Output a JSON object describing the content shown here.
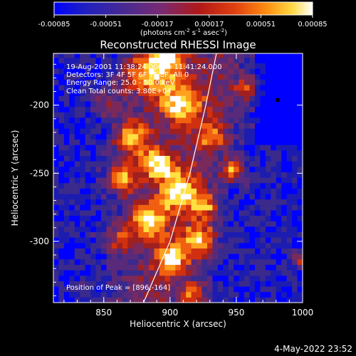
{
  "chart_data": {
    "type": "heatmap",
    "title": "Reconstructed RHESSI Image",
    "xlabel": "Heliocentric X (arcsec)",
    "ylabel": "Heliocentric Y (arcsec)",
    "xlim": [
      812,
      1000
    ],
    "ylim": [
      -345,
      -162
    ],
    "xticks": [
      850,
      900,
      950,
      1000
    ],
    "yticks": [
      -200,
      -250,
      -300
    ],
    "colorbar": {
      "min": -0.00085,
      "max": 0.00085,
      "ticks": [
        "-0.00085",
        "-0.00051",
        "-0.00017",
        "0.00017",
        "0.00051",
        "0.00085"
      ],
      "unit_main": "(photons cm",
      "unit_exp1": "-2",
      "unit_s": " s",
      "unit_exp2": "-1",
      "unit_asec": " asec",
      "unit_exp3": "-2",
      "unit_close": ")"
    },
    "annotations": [
      "19-Aug-2001 11:38:24.000 to 11:41:24.000",
      "Detectors: 3F 4F 5F 6F 7F 8F, All 0",
      "Energy Range: 25.0 - 50.0 keV",
      "Clean     Total counts: 3.80E+04"
    ],
    "peak_label": "Position of Peak = [896,-164]",
    "peak": [
      896,
      -164
    ],
    "limb_arc": [
      [
        880,
        -345
      ],
      [
        900,
        -300
      ],
      [
        915,
        -250
      ],
      [
        927,
        -200
      ],
      [
        935,
        -162
      ]
    ],
    "colors": [
      "#0000ff",
      "#1c1cb0",
      "#3a2a8c",
      "#5a2a7a",
      "#7a2a5a",
      "#a02020",
      "#d03010",
      "#f06010",
      "#ffa020",
      "#ffe040",
      "#ffffff"
    ]
  },
  "timestamp": "4-May-2022 23:52"
}
